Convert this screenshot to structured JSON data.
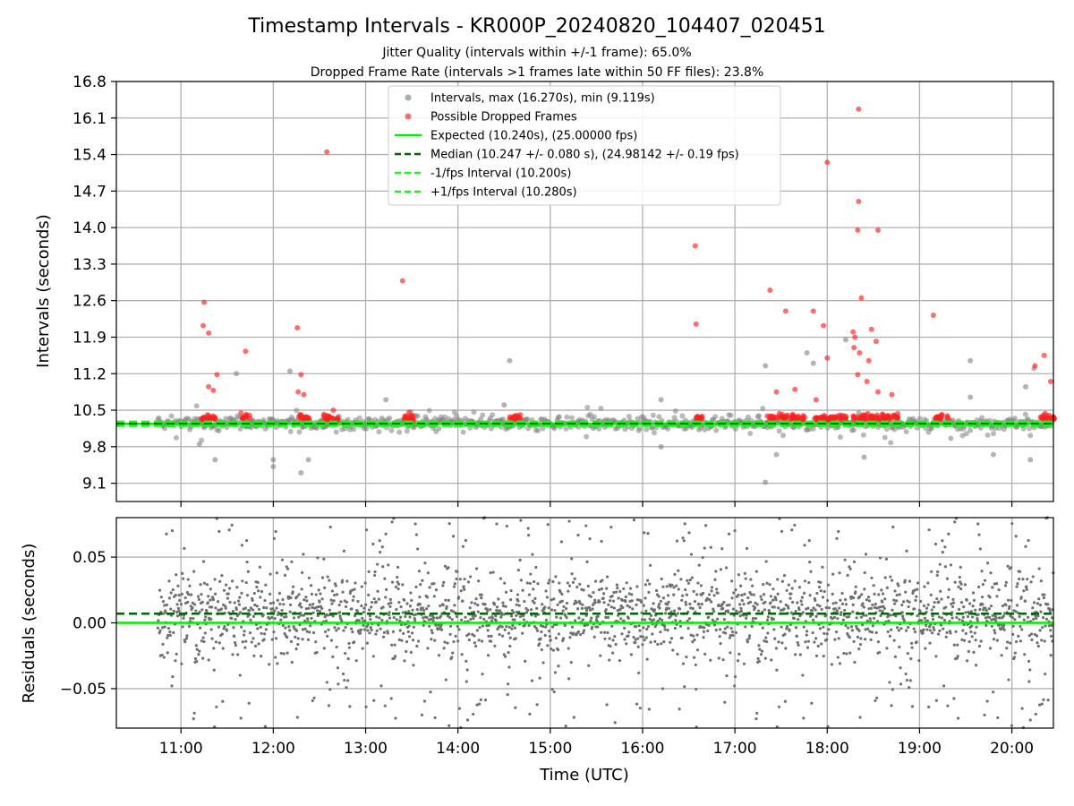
{
  "chart_data": [
    {
      "type": "scatter",
      "panel": "intervals",
      "title": "Timestamp Intervals - KR000P_20240820_104407_020451",
      "subtitle_lines": [
        "Jitter Quality (intervals within +/-1 frame): 65.0%",
        "Dropped Frame Rate (intervals >1 frames late within 50 FF files): 23.8%"
      ],
      "ylabel": "Intervals (seconds)",
      "xlim": [
        10.3,
        20.45
      ],
      "ylim": [
        8.75,
        16.8
      ],
      "yticks": [
        9.1,
        9.8,
        10.5,
        11.2,
        11.9,
        12.6,
        13.3,
        14.0,
        14.7,
        15.4,
        16.1,
        16.8
      ],
      "ytick_labels": [
        "9.1",
        "9.8",
        "10.5",
        "11.2",
        "11.9",
        "12.6",
        "13.3",
        "14.0",
        "14.7",
        "15.4",
        "16.1",
        "16.8"
      ],
      "grid": true,
      "legend_placement": "top-center",
      "legend": [
        {
          "label": "Intervals, max (16.270s), min (9.119s)",
          "kind": "marker",
          "color": "#808080"
        },
        {
          "label": "Possible Dropped Frames",
          "kind": "marker",
          "color": "#ff2020"
        },
        {
          "label": "Expected (10.240s), (25.00000 fps)",
          "kind": "line",
          "color": "#00ee00",
          "dash": "solid"
        },
        {
          "label": "Median (10.247 +/- 0.080 s), (24.98142 +/- 0.19 fps)",
          "kind": "line",
          "color": "#006400",
          "dash": "dashed"
        },
        {
          "label": "-1/fps Interval (10.200s)",
          "kind": "line",
          "color": "#22ee22",
          "dash": "dashed"
        },
        {
          "label": "+1/fps Interval (10.280s)",
          "kind": "line",
          "color": "#22ee22",
          "dash": "dashed"
        }
      ],
      "hlines": {
        "expected": 10.24,
        "median": 10.247,
        "minus_interval": 10.2,
        "plus_interval": 10.28
      },
      "x_start": 10.75,
      "intervals_max": 16.27,
      "intervals_min": 9.119,
      "outliers_gray": [
        [
          11.2,
          9.85
        ],
        [
          11.37,
          9.55
        ],
        [
          11.6,
          11.2
        ],
        [
          12.0,
          9.55
        ],
        [
          12.0,
          9.42
        ],
        [
          12.18,
          11.25
        ],
        [
          12.3,
          9.3
        ],
        [
          12.38,
          9.55
        ],
        [
          13.22,
          10.7
        ],
        [
          14.56,
          11.45
        ],
        [
          14.5,
          10.6
        ],
        [
          16.2,
          10.7
        ],
        [
          16.2,
          9.8
        ],
        [
          17.33,
          11.35
        ],
        [
          17.33,
          9.12
        ],
        [
          17.45,
          9.65
        ],
        [
          17.78,
          11.6
        ],
        [
          17.85,
          11.4
        ],
        [
          18.2,
          11.85
        ],
        [
          18.4,
          9.6
        ],
        [
          19.55,
          11.45
        ],
        [
          19.55,
          10.75
        ],
        [
          19.8,
          9.65
        ],
        [
          20.15,
          10.95
        ],
        [
          20.2,
          9.55
        ],
        [
          20.24,
          11.3
        ]
      ],
      "dropped_frames": [
        [
          11.25,
          12.57
        ],
        [
          11.24,
          12.12
        ],
        [
          11.3,
          11.98
        ],
        [
          11.39,
          11.18
        ],
        [
          11.3,
          10.95
        ],
        [
          11.35,
          10.88
        ],
        [
          11.7,
          11.63
        ],
        [
          11.65,
          10.45
        ],
        [
          12.26,
          12.08
        ],
        [
          12.3,
          11.18
        ],
        [
          12.27,
          10.85
        ],
        [
          12.33,
          10.8
        ],
        [
          12.58,
          15.45
        ],
        [
          12.65,
          10.5
        ],
        [
          13.4,
          12.98
        ],
        [
          16.57,
          13.65
        ],
        [
          16.58,
          12.15
        ],
        [
          17.38,
          12.8
        ],
        [
          17.55,
          12.4
        ],
        [
          17.65,
          10.9
        ],
        [
          17.45,
          10.85
        ],
        [
          17.85,
          12.4
        ],
        [
          17.96,
          12.12
        ],
        [
          18.0,
          15.25
        ],
        [
          18.0,
          11.5
        ],
        [
          17.88,
          10.7
        ],
        [
          18.34,
          16.27
        ],
        [
          18.34,
          14.5
        ],
        [
          18.33,
          13.95
        ],
        [
          18.55,
          13.95
        ],
        [
          18.37,
          12.65
        ],
        [
          18.28,
          12.0
        ],
        [
          18.3,
          11.9
        ],
        [
          18.29,
          11.7
        ],
        [
          18.35,
          11.6
        ],
        [
          18.48,
          12.05
        ],
        [
          18.53,
          11.82
        ],
        [
          18.45,
          11.45
        ],
        [
          18.33,
          11.18
        ],
        [
          18.43,
          11.05
        ],
        [
          18.55,
          10.85
        ],
        [
          18.7,
          10.8
        ],
        [
          19.15,
          12.32
        ],
        [
          20.35,
          11.55
        ],
        [
          20.25,
          11.35
        ],
        [
          20.42,
          11.05
        ]
      ],
      "dropped_clusters": [
        [
          11.3,
          0.08
        ],
        [
          11.7,
          0.05
        ],
        [
          12.33,
          0.06
        ],
        [
          12.62,
          0.08
        ],
        [
          13.48,
          0.06
        ],
        [
          14.62,
          0.07
        ],
        [
          16.62,
          0.05
        ],
        [
          17.55,
          0.2
        ],
        [
          18.05,
          0.18
        ],
        [
          18.4,
          0.12
        ],
        [
          18.62,
          0.15
        ],
        [
          19.25,
          0.08
        ],
        [
          20.38,
          0.08
        ]
      ]
    },
    {
      "type": "scatter",
      "panel": "residuals",
      "xlabel": "Time (UTC)",
      "ylabel": "Residuals (seconds)",
      "xlim": [
        10.3,
        20.45
      ],
      "ylim": [
        -0.08,
        0.08
      ],
      "yticks": [
        -0.05,
        0.0,
        0.05
      ],
      "ytick_labels": [
        "−0.05",
        "0.00",
        "0.05"
      ],
      "xticks": [
        11,
        12,
        13,
        14,
        15,
        16,
        17,
        18,
        19,
        20
      ],
      "xtick_labels": [
        "11:00",
        "12:00",
        "13:00",
        "14:00",
        "15:00",
        "16:00",
        "17:00",
        "18:00",
        "19:00",
        "20:00"
      ],
      "hlines": {
        "expected": 0.0,
        "median": 0.007
      },
      "x_start": 10.75,
      "grid": true
    }
  ]
}
